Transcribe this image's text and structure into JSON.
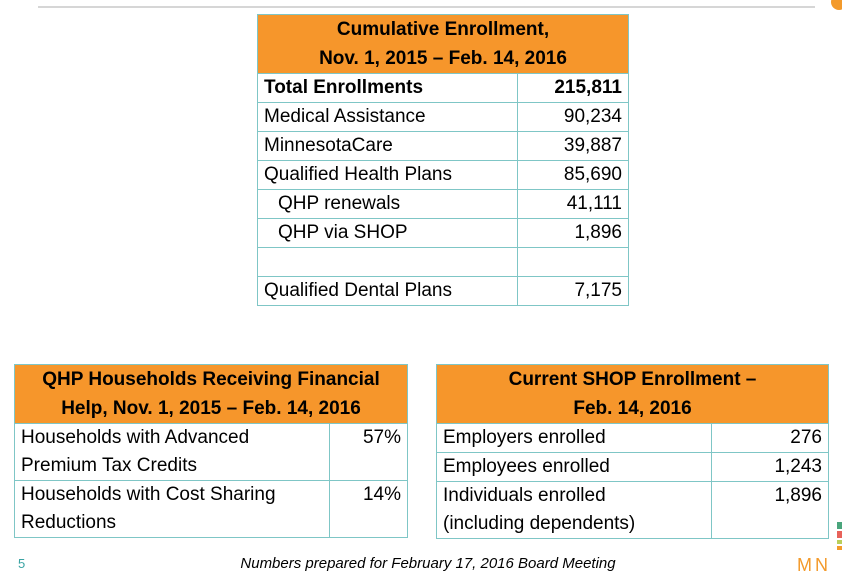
{
  "cumulative": {
    "title_line1": "Cumulative Enrollment,",
    "title_line2": "Nov. 1, 2015 – Feb. 14, 2016",
    "rows": [
      {
        "label": "Total Enrollments",
        "value": "215,811"
      },
      {
        "label": "Medical Assistance",
        "value": "90,234"
      },
      {
        "label": "MinnesotaCare",
        "value": "39,887"
      },
      {
        "label": "Qualified Health Plans",
        "value": "85,690"
      },
      {
        "label": "QHP renewals",
        "value": "41,111"
      },
      {
        "label": "QHP via SHOP",
        "value": "1,896"
      },
      {
        "label": "",
        "value": ""
      },
      {
        "label": "Qualified Dental Plans",
        "value": "7,175"
      }
    ]
  },
  "financial": {
    "title_line1": "QHP Households Receiving Financial",
    "title_line2": "Help, Nov. 1, 2015 – Feb. 14, 2016",
    "rows": [
      {
        "label_line1": "Households with Advanced",
        "label_line2": "Premium Tax Credits",
        "value": "57%"
      },
      {
        "label_line1": "Households with Cost Sharing",
        "label_line2": "Reductions",
        "value": "14%"
      }
    ]
  },
  "shop": {
    "title_line1": "Current SHOP Enrollment –",
    "title_line2": "Feb. 14, 2016",
    "rows": [
      {
        "label_line1": "Employers enrolled",
        "label_line2": "",
        "value": "276"
      },
      {
        "label_line1": "Employees enrolled",
        "label_line2": "",
        "value": "1,243"
      },
      {
        "label_line1": "Individuals enrolled",
        "label_line2": "(including dependents)",
        "value": "1,896"
      }
    ]
  },
  "footer": {
    "page_number": "5",
    "note": "Numbers prepared for February 17, 2016 Board Meeting",
    "logo_text": "MN"
  },
  "colors": {
    "header": "#f6962b",
    "border": "#7fc6c6"
  }
}
